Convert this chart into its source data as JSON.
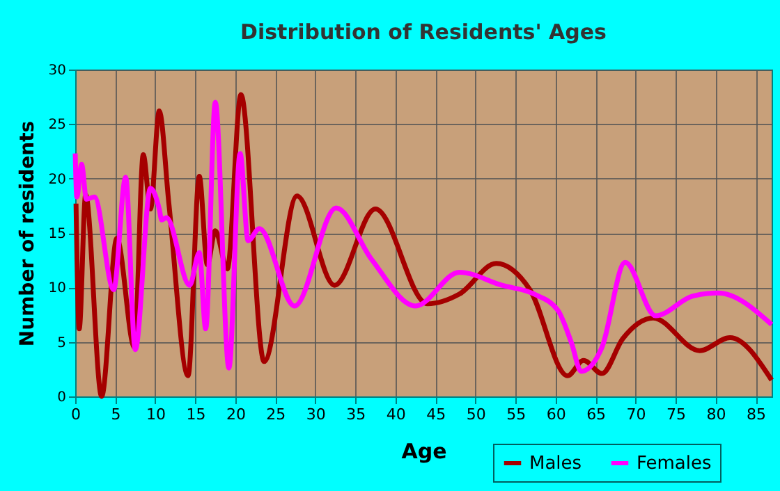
{
  "chart_data": {
    "type": "line",
    "title": "Distribution of Residents' Ages",
    "xlabel": "Age",
    "ylabel": "Number of residents",
    "xlim": [
      0,
      87
    ],
    "xticks": [
      0,
      5,
      10,
      15,
      20,
      25,
      30,
      35,
      40,
      45,
      50,
      55,
      60,
      65,
      70,
      75,
      80,
      85
    ],
    "ylim": [
      0,
      30
    ],
    "yticks": [
      0,
      5,
      10,
      15,
      20,
      25,
      30
    ],
    "grid": true,
    "legend": "bottom right",
    "series": [
      {
        "name": "Males",
        "color": "#a50000",
        "x": [
          0.1,
          0.5,
          1.3,
          3.3,
          5.2,
          7.4,
          8.5,
          9.4,
          10.5,
          11.7,
          14.1,
          15.5,
          16.5,
          17.5,
          19,
          20.7,
          23.6,
          27.7,
          32.4,
          37.5,
          44,
          48,
          52.6,
          56.8,
          61.5,
          63.5,
          65.8,
          68.4,
          72.2,
          78,
          81.8,
          87
        ],
        "values": [
          17.7,
          6.2,
          18.5,
          0,
          14.5,
          4.5,
          22.2,
          17.2,
          26.2,
          17.7,
          1.9,
          20.2,
          12.1,
          15.2,
          11.7,
          27.7,
          3.2,
          18.4,
          10.2,
          17.2,
          8.5,
          9.4,
          12.2,
          9.8,
          1.9,
          3.3,
          2.1,
          5.3,
          7.2,
          4.2,
          5.4,
          1.5
        ]
      },
      {
        "name": "Females",
        "color": "#ff00ff",
        "x": [
          0,
          0.2,
          0.8,
          1.4,
          2.4,
          4.8,
          6.3,
          7.5,
          9.4,
          10.5,
          10.8,
          11.4,
          14.3,
          15.5,
          16.3,
          17.5,
          19.2,
          20.6,
          21.6,
          23,
          27.4,
          32.6,
          37,
          42.5,
          48,
          53.3,
          57.3,
          60.3,
          62,
          63.2,
          65.8,
          68.7,
          72.5,
          77.1,
          80.3,
          87
        ],
        "values": [
          22.3,
          18.3,
          21.3,
          18.1,
          18.3,
          9.8,
          20.1,
          4.3,
          19.1,
          17.2,
          16.2,
          16.4,
          10.2,
          13.2,
          6.2,
          27,
          2.6,
          22.3,
          14.3,
          15.4,
          8.3,
          17.3,
          12.6,
          8.3,
          11.4,
          10.2,
          9.4,
          7.9,
          4.9,
          2.3,
          4.5,
          12.3,
          7.4,
          9.2,
          9.5,
          6.6
        ]
      }
    ]
  }
}
